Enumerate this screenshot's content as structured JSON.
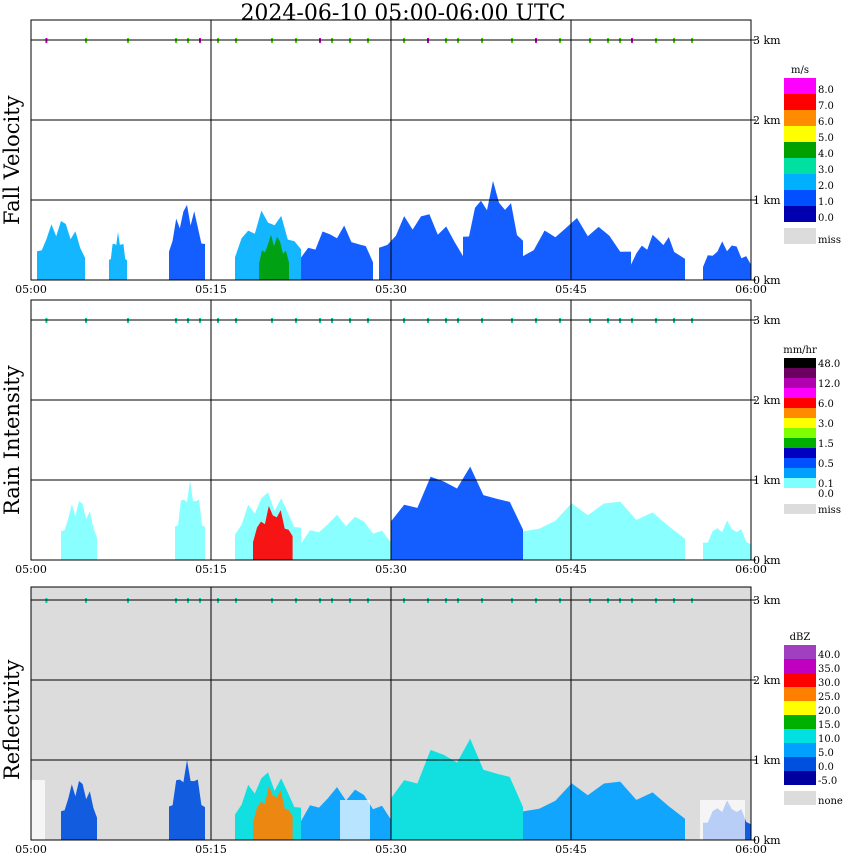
{
  "title": "2024-06-10   05:00-06:00 UTC",
  "x_tick_labels": [
    "05:00",
    "05:15",
    "05:30",
    "05:45",
    "06:00"
  ],
  "y_tick_labels": [
    "3 km",
    "2 km",
    "1 km",
    "0 km"
  ],
  "panels": [
    {
      "label": "Fall Velocity",
      "unit": "m/s",
      "legend": [
        {
          "label": "8.0",
          "color": "#ff00ff"
        },
        {
          "label": "7.0",
          "color": "#ff0000"
        },
        {
          "label": "6.0",
          "color": "#ff8c00"
        },
        {
          "label": "5.0",
          "color": "#ffff00"
        },
        {
          "label": "4.0",
          "color": "#00a000"
        },
        {
          "label": "3.0",
          "color": "#00e0a0"
        },
        {
          "label": "2.0",
          "color": "#00b0ff"
        },
        {
          "label": "1.0",
          "color": "#0050ff"
        },
        {
          "label": "0.0",
          "color": "#0000b0"
        },
        {
          "label": "miss",
          "color": "#dcdcdc"
        }
      ]
    },
    {
      "label": "Rain Intensity",
      "unit": "mm/hr",
      "legend": [
        {
          "label": "48.0",
          "color": "#000000"
        },
        {
          "label": "",
          "color": "#6a0060"
        },
        {
          "label": "12.0",
          "color": "#b000b0"
        },
        {
          "label": "",
          "color": "#ff00ff"
        },
        {
          "label": "6.0",
          "color": "#ff0000"
        },
        {
          "label": "",
          "color": "#ff8c00"
        },
        {
          "label": "3.0",
          "color": "#ffff00"
        },
        {
          "label": "",
          "color": "#80ff00"
        },
        {
          "label": "1.5",
          "color": "#00b000"
        },
        {
          "label": "",
          "color": "#0000c0"
        },
        {
          "label": "0.5",
          "color": "#0050ff"
        },
        {
          "label": "",
          "color": "#00a0ff"
        },
        {
          "label": "0.1",
          "color": "#80ffff"
        },
        {
          "label": "0.0",
          "color": "#ffffff"
        },
        {
          "label": "miss",
          "color": "#dcdcdc"
        }
      ]
    },
    {
      "label": "Reflectivity",
      "unit": "dBZ",
      "legend": [
        {
          "label": "40.0",
          "color": "#a040c0"
        },
        {
          "label": "35.0",
          "color": "#c000c0"
        },
        {
          "label": "30.0",
          "color": "#ff0000"
        },
        {
          "label": "25.0",
          "color": "#ff8000"
        },
        {
          "label": "20.0",
          "color": "#ffff00"
        },
        {
          "label": "15.0",
          "color": "#00b000"
        },
        {
          "label": "10.0",
          "color": "#00e0e0"
        },
        {
          "label": "5.0",
          "color": "#00a0ff"
        },
        {
          "label": "0.0",
          "color": "#0050e0"
        },
        {
          "label": "-5.0",
          "color": "#0000a0"
        },
        {
          "label": "none",
          "color": "#dcdcdc"
        }
      ]
    }
  ],
  "chart_data": [
    {
      "type": "heatmap",
      "panel": "Fall Velocity",
      "x_range": [
        "05:00",
        "06:00"
      ],
      "y_range_km": [
        0,
        3.5
      ],
      "blobs": [
        {
          "t": [
            0.5,
            4.5
          ],
          "top_km": 0.8,
          "value": 2.0
        },
        {
          "t": [
            6.5,
            8.0
          ],
          "top_km": 0.6,
          "value": 2.0
        },
        {
          "t": [
            11.5,
            14.5
          ],
          "top_km": 1.0,
          "value": 1.0
        },
        {
          "t": [
            17.0,
            22.5
          ],
          "top_km": 0.9,
          "value": 2.0
        },
        {
          "t": [
            19.0,
            21.5
          ],
          "top_km": 0.6,
          "value": 4.0
        },
        {
          "t": [
            22.5,
            28.5
          ],
          "top_km": 0.7,
          "value": 1.0
        },
        {
          "t": [
            29.0,
            36.0
          ],
          "top_km": 0.9,
          "value": 1.5
        },
        {
          "t": [
            36.0,
            41.0
          ],
          "top_km": 1.25,
          "value": 1.5
        },
        {
          "t": [
            41.0,
            50.0
          ],
          "top_km": 0.8,
          "value": 1.0
        },
        {
          "t": [
            50.0,
            54.5
          ],
          "top_km": 0.6,
          "value": 1.0
        },
        {
          "t": [
            56.0,
            60.0
          ],
          "top_km": 0.5,
          "value": 1.0
        }
      ]
    },
    {
      "type": "heatmap",
      "panel": "Rain Intensity",
      "x_range": [
        "05:00",
        "06:00"
      ],
      "y_range_km": [
        0,
        3.5
      ],
      "blobs": [
        {
          "t": [
            2.5,
            5.5
          ],
          "top_km": 0.8,
          "value": 0.1
        },
        {
          "t": [
            12.0,
            14.5
          ],
          "top_km": 1.0,
          "value": 0.1
        },
        {
          "t": [
            17.0,
            22.5
          ],
          "top_km": 0.9,
          "value": 0.1
        },
        {
          "t": [
            18.5,
            21.8
          ],
          "top_km": 0.7,
          "value": 6.0
        },
        {
          "t": [
            22.5,
            30.0
          ],
          "top_km": 0.6,
          "value": 0.1
        },
        {
          "t": [
            30.0,
            41.0
          ],
          "top_km": 1.2,
          "value": 0.5
        },
        {
          "t": [
            41.0,
            54.5
          ],
          "top_km": 0.8,
          "value": 0.1
        },
        {
          "t": [
            56.0,
            60.0
          ],
          "top_km": 0.5,
          "value": 0.1
        }
      ]
    },
    {
      "type": "heatmap",
      "panel": "Reflectivity",
      "x_range": [
        "05:00",
        "06:00"
      ],
      "y_range_km": [
        0,
        3.5
      ],
      "blobs": [
        {
          "t": [
            2.5,
            5.5
          ],
          "top_km": 0.8,
          "value": 0.0
        },
        {
          "t": [
            11.5,
            14.5
          ],
          "top_km": 1.0,
          "value": 0.0
        },
        {
          "t": [
            17.0,
            22.5
          ],
          "top_km": 0.9,
          "value": 10.0
        },
        {
          "t": [
            18.5,
            21.8
          ],
          "top_km": 0.7,
          "value": 25.0
        },
        {
          "t": [
            22.5,
            30.0
          ],
          "top_km": 0.7,
          "value": 5.0
        },
        {
          "t": [
            30.0,
            41.0
          ],
          "top_km": 1.3,
          "value": 10.0
        },
        {
          "t": [
            41.0,
            54.5
          ],
          "top_km": 0.8,
          "value": 5.0
        },
        {
          "t": [
            56.0,
            60.0
          ],
          "top_km": 0.5,
          "value": 0.0
        }
      ]
    }
  ]
}
